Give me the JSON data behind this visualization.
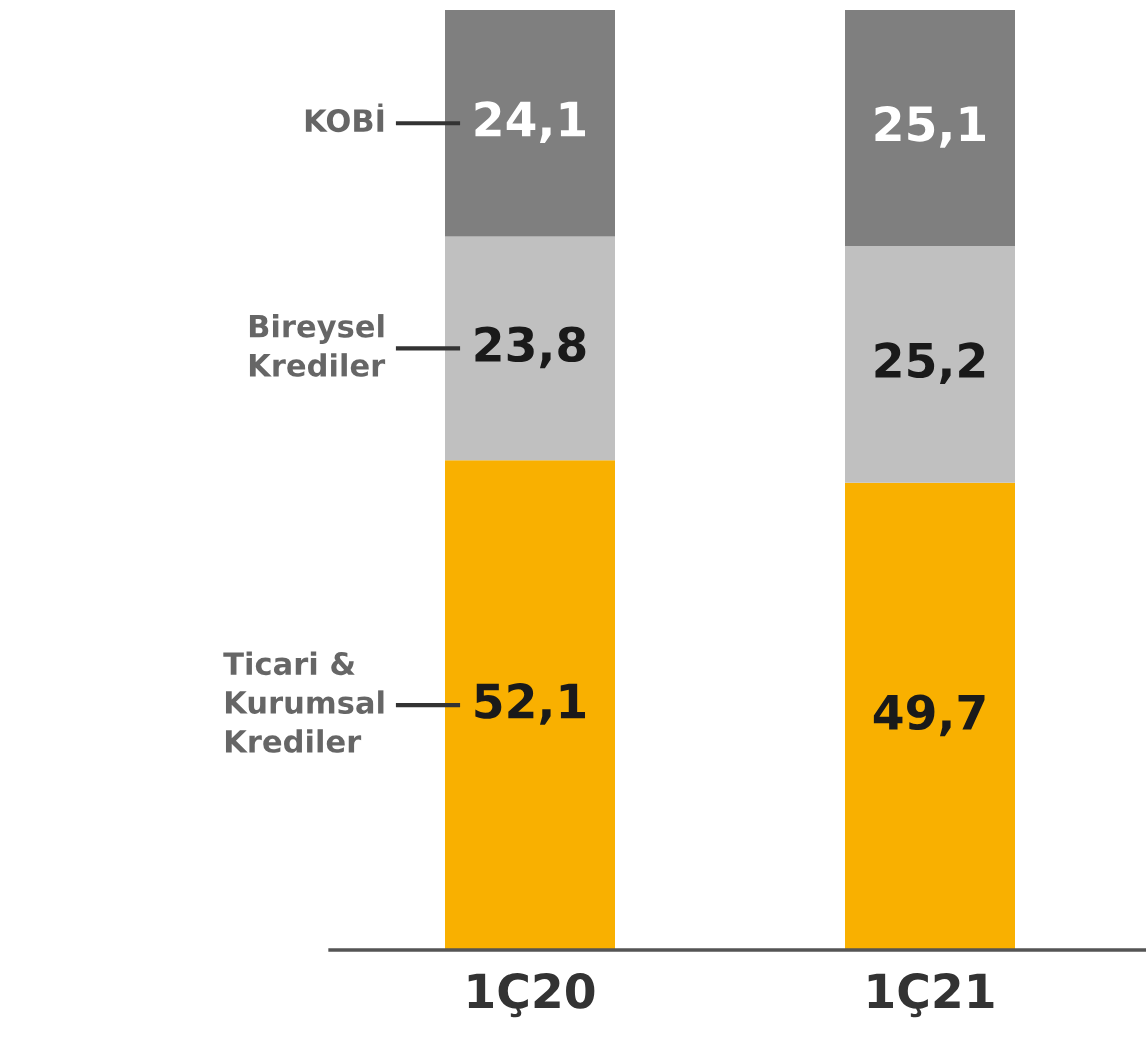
{
  "chart_data": {
    "type": "bar",
    "stacked": true,
    "categories": [
      "1Ç20",
      "1Ç21"
    ],
    "legend": "left",
    "series": [
      {
        "name": "Ticari & Kurumsal Krediler",
        "color": "#f9b000",
        "values": [
          52.1,
          49.7
        ],
        "value_labels": [
          "52,1",
          "49,7"
        ]
      },
      {
        "name": "Bireysel Krediler",
        "color": "#c0c0c0",
        "values": [
          23.8,
          25.2
        ],
        "value_labels": [
          "23,8",
          "25,2"
        ]
      },
      {
        "name": "KOBİ",
        "color": "#7f7f7f",
        "values": [
          24.1,
          25.1
        ],
        "value_labels": [
          "24,1",
          "25,1"
        ]
      }
    ]
  }
}
